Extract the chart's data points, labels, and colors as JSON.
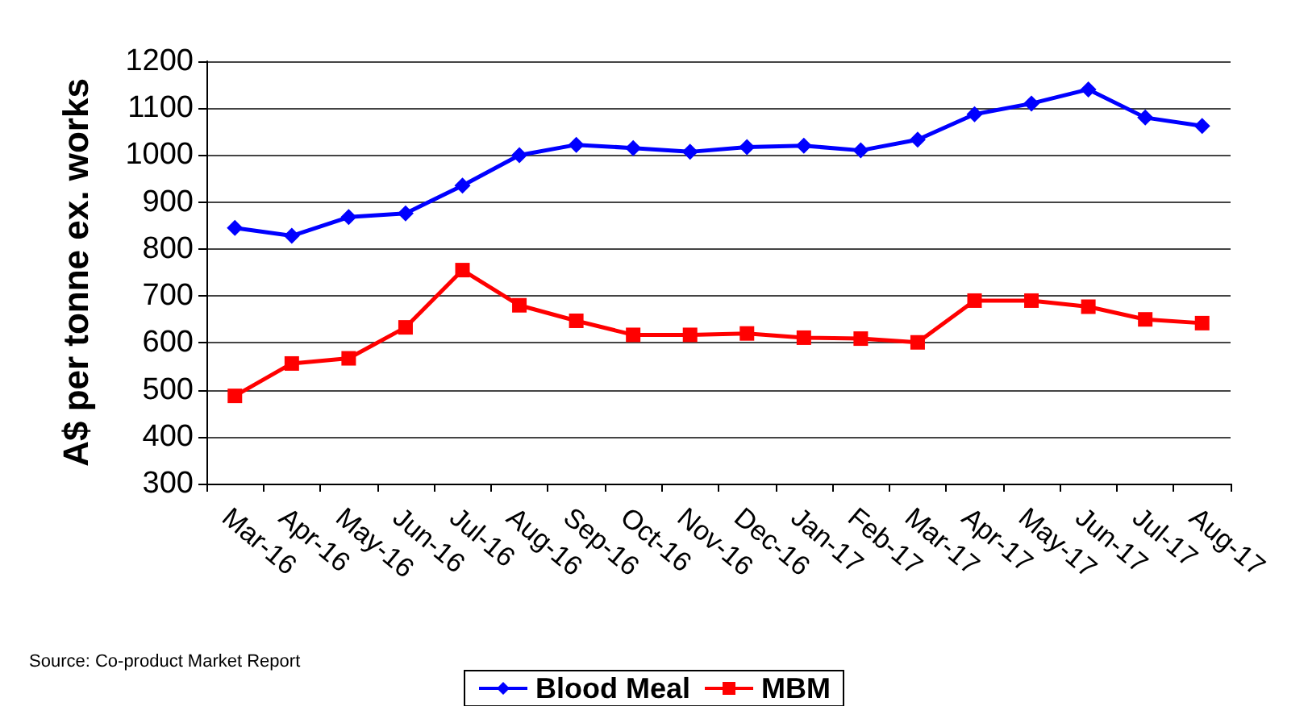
{
  "chart_data": {
    "type": "line",
    "ylabel": "A$ per tonne ex. works",
    "categories": [
      "Mar-16",
      "Apr-16",
      "May-16",
      "Jun-16",
      "Jul-16",
      "Aug-16",
      "Sep-16",
      "Oct-16",
      "Nov-16",
      "Dec-16",
      "Jan-17",
      "Feb-17",
      "Mar-17",
      "Apr-17",
      "May-17",
      "Jun-17",
      "Jul-17",
      "Aug-17"
    ],
    "series": [
      {
        "name": "Blood Meal",
        "color": "#0000ff",
        "marker": "diamond",
        "values": [
          845,
          828,
          868,
          876,
          935,
          1000,
          1022,
          1015,
          1007,
          1017,
          1020,
          1010,
          1033,
          1087,
          1110,
          1140,
          1080,
          1062
        ]
      },
      {
        "name": "MBM",
        "color": "#ff0000",
        "marker": "square",
        "values": [
          487,
          556,
          567,
          633,
          755,
          680,
          647,
          617,
          617,
          620,
          611,
          609,
          601,
          690,
          690,
          677,
          650,
          642
        ]
      }
    ],
    "ylim": [
      300,
      1200
    ],
    "yticks": [
      300,
      400,
      500,
      600,
      700,
      800,
      900,
      1000,
      1100,
      1200
    ],
    "grid": "y",
    "legend": "bottom",
    "line_style": "solid",
    "annotations": [
      "Source: Co-product Market Report"
    ]
  }
}
